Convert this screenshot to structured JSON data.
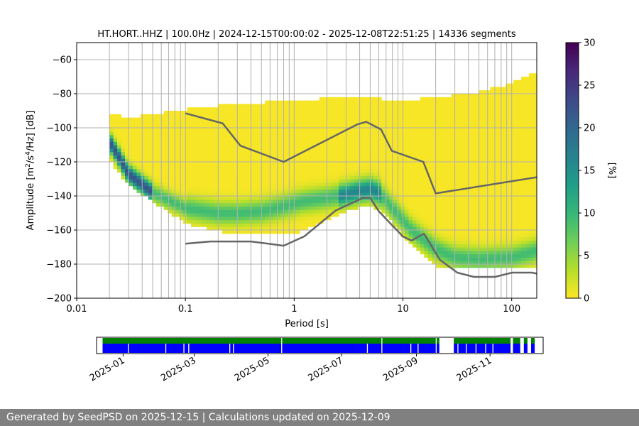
{
  "chart_data": {
    "type": "heatmap",
    "title": "HT.HORT..HHZ | 100.0Hz | 2024-12-15T00:00:02 - 2025-12-08T22:51:25 | 14336 segments",
    "xlabel": "Period [s]",
    "ylabel_parts": [
      "Amplitude [m",
      "2",
      "/s",
      "4",
      "/Hz] [dB]"
    ],
    "x_scale": "log",
    "xlim": [
      0.01,
      170
    ],
    "ylim": [
      -200,
      -50
    ],
    "x_ticks": [
      {
        "value": 0.01,
        "label": "0.01"
      },
      {
        "value": 0.1,
        "label": "0.1"
      },
      {
        "value": 1,
        "label": "1"
      },
      {
        "value": 10,
        "label": "10"
      },
      {
        "value": 100,
        "label": "100"
      }
    ],
    "y_ticks": [
      -200,
      -180,
      -160,
      -140,
      -120,
      -100,
      -80,
      -60
    ],
    "grid": true,
    "period_range": [
      0.02,
      170
    ],
    "mode_curve": {
      "period": [
        0.02,
        0.025,
        0.03,
        0.05,
        0.1,
        0.2,
        0.3,
        0.5,
        0.8,
        1.2,
        2,
        3,
        4,
        5,
        6,
        8,
        12,
        20,
        30,
        50,
        100,
        170
      ],
      "db": [
        -108,
        -118,
        -127,
        -138,
        -147,
        -150,
        -150,
        -149,
        -146,
        -143,
        -141,
        -139,
        -137,
        -136,
        -138,
        -147,
        -160,
        -171,
        -176,
        -177,
        -176,
        -172
      ]
    },
    "upper_bound": {
      "period": [
        0.02,
        0.03,
        0.1,
        0.3,
        1,
        3,
        5,
        7,
        10,
        20,
        50,
        100,
        170
      ],
      "db": [
        -92,
        -95,
        -90,
        -87,
        -85,
        -83,
        -82,
        -85,
        -85,
        -83,
        -80,
        -75,
        -68
      ]
    },
    "lower_bound": {
      "period": [
        0.02,
        0.03,
        0.1,
        0.3,
        1,
        3,
        5,
        7,
        10,
        20,
        50,
        100,
        170
      ],
      "db": [
        -118,
        -133,
        -155,
        -162,
        -162,
        -148,
        -144,
        -150,
        -163,
        -180,
        -182,
        -181,
        -180
      ]
    },
    "nhnm": {
      "period": [
        0.1,
        0.22,
        0.32,
        0.8,
        3.8,
        4.6,
        6.3,
        7.9,
        15.4,
        20,
        170
      ],
      "db": [
        -91.5,
        -97.4,
        -110.5,
        -120,
        -98,
        -96.5,
        -101,
        -113.5,
        -120,
        -138.5,
        -129
      ]
    },
    "nlnm": {
      "period": [
        0.1,
        0.17,
        0.4,
        0.8,
        1.24,
        2.4,
        4.3,
        5,
        6,
        10,
        12,
        15.6,
        21.9,
        31.6,
        45,
        70,
        101,
        154,
        170
      ],
      "db": [
        -168,
        -166.7,
        -166.7,
        -169.2,
        -163.7,
        -148.6,
        -141.1,
        -141.1,
        -149,
        -163.8,
        -166.2,
        -162.1,
        -177.5,
        -185,
        -187.5,
        -187.5,
        -185,
        -185,
        -185.6
      ]
    },
    "colorbar": {
      "label": "[%]",
      "range": [
        0,
        30
      ],
      "ticks": [
        0,
        5,
        10,
        15,
        20,
        25,
        30
      ],
      "colors": [
        "#fde725",
        "#b5de2b",
        "#6ece58",
        "#35b779",
        "#1f9e89",
        "#26828e",
        "#31688e",
        "#3e4989",
        "#482878",
        "#440154"
      ]
    },
    "timeline": {
      "range": [
        "2024-12-10",
        "2025-12-15"
      ],
      "ticks": [
        {
          "date": "2025-01-01",
          "label": "2025-01"
        },
        {
          "date": "2025-03-01",
          "label": "2025-03"
        },
        {
          "date": "2025-05-01",
          "label": "2025-05"
        },
        {
          "date": "2025-07-01",
          "label": "2025-07"
        },
        {
          "date": "2025-09-01",
          "label": "2025-09"
        },
        {
          "date": "2025-11-01",
          "label": "2025-11"
        }
      ],
      "green_spans": [
        [
          "2024-12-15",
          "2025-09-20"
        ],
        [
          "2025-10-02",
          "2025-11-18"
        ],
        [
          "2025-11-20",
          "2025-11-26"
        ],
        [
          "2025-11-29",
          "2025-12-02"
        ],
        [
          "2025-12-05",
          "2025-12-08"
        ]
      ],
      "blue_spans": [
        [
          "2024-12-15",
          "2025-09-20"
        ],
        [
          "2025-10-02",
          "2025-11-18"
        ],
        [
          "2025-11-20",
          "2025-11-26"
        ],
        [
          "2025-11-29",
          "2025-12-02"
        ],
        [
          "2025-12-05",
          "2025-12-08"
        ]
      ],
      "gaps": [
        "2025-01-05",
        "2025-02-05",
        "2025-02-20",
        "2025-02-24",
        "2025-03-30",
        "2025-04-02",
        "2025-05-12",
        "2025-07-22",
        "2025-08-03",
        "2025-08-27",
        "2025-09-02",
        "2025-09-17",
        "2025-10-05",
        "2025-10-12",
        "2025-10-20",
        "2025-10-28",
        "2025-11-03"
      ],
      "green_gaps": [
        "2025-05-12",
        "2025-08-03",
        "2025-09-17"
      ],
      "green_color": "#008000",
      "blue_color": "#0000ff"
    }
  },
  "footer": {
    "text": "Generated by SeedPSD on 2025-12-15 | Calculations updated on 2025-12-09"
  }
}
